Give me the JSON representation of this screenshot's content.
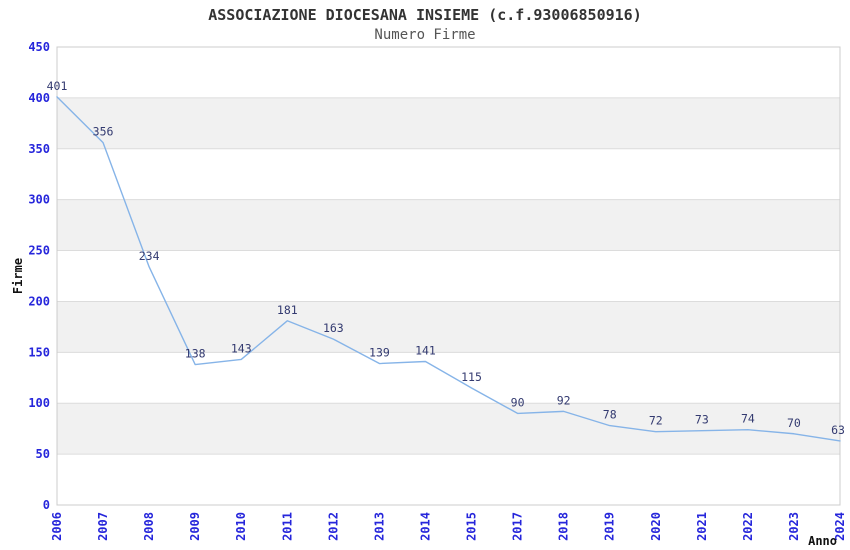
{
  "chart_data": {
    "type": "line",
    "title": "ASSOCIAZIONE DIOCESANA INSIEME (c.f.93006850916)",
    "subtitle": "Numero Firme",
    "xlabel": "Anno",
    "ylabel": "Firme",
    "categories": [
      "2006",
      "2007",
      "2008",
      "2009",
      "2010",
      "2011",
      "2012",
      "2013",
      "2014",
      "2015",
      "2017",
      "2018",
      "2019",
      "2020",
      "2021",
      "2022",
      "2023",
      "2024"
    ],
    "values": [
      401,
      356,
      234,
      138,
      143,
      181,
      163,
      139,
      141,
      115,
      90,
      92,
      78,
      72,
      73,
      74,
      70,
      63
    ],
    "ylim": [
      0,
      450
    ],
    "y_tick_step": 50,
    "y_ticks": [
      0,
      50,
      100,
      150,
      200,
      250,
      300,
      350,
      400,
      450
    ],
    "shaded_bands": [
      [
        50,
        100
      ],
      [
        150,
        200
      ],
      [
        250,
        300
      ],
      [
        350,
        400
      ]
    ],
    "grid": true,
    "legend": "none",
    "colors": {
      "line": "#86B4E8",
      "tick_label": "#2626DB",
      "data_label": "#333A70",
      "band": "#F1F1F1",
      "grid": "#DCDCDC",
      "border": "#CCCCCC",
      "title": "#333333",
      "subtitle": "#555555",
      "axis_title": "#111111",
      "background": "#FFFFFF"
    }
  }
}
